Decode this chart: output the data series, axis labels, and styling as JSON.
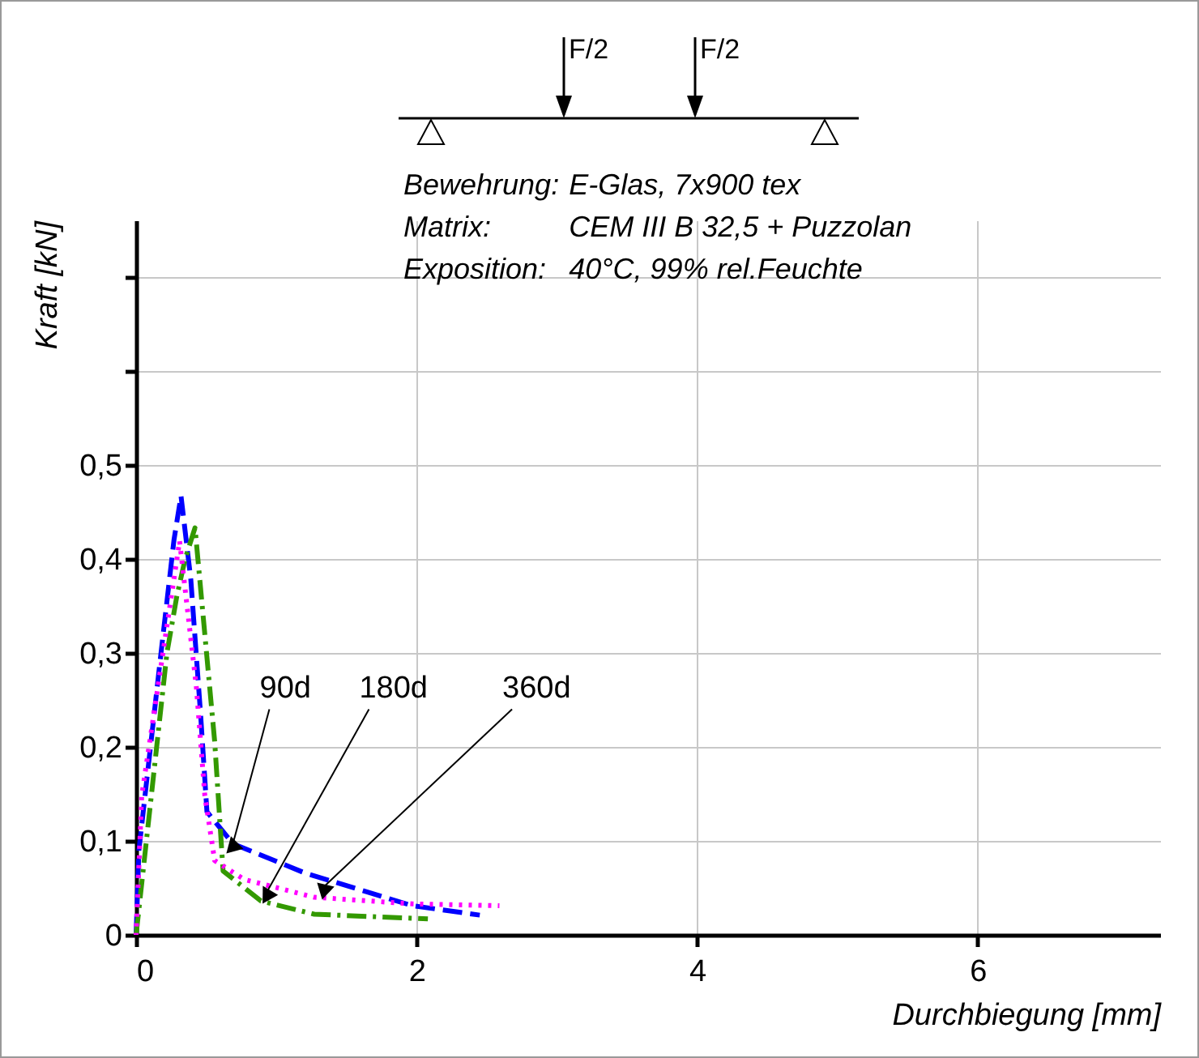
{
  "chart_data": {
    "type": "line",
    "xlabel": "Durchbiegung [mm]",
    "ylabel": "Kraft [kN]",
    "xlim": [
      0,
      7.3
    ],
    "ylim": [
      0,
      0.76
    ],
    "xticks": [
      0,
      2,
      4,
      6
    ],
    "yticks": [
      0,
      {
        "value": 0.1,
        "label": "0,1"
      },
      {
        "value": 0.2,
        "label": "0,2"
      },
      {
        "value": 0.3,
        "label": "0,3"
      },
      {
        "value": 0.4,
        "label": "0,4"
      },
      {
        "value": 0.5,
        "label": "0,5"
      },
      {
        "value": 0.6,
        "label": null
      },
      {
        "value": 0.7,
        "label": null
      }
    ],
    "grid": true,
    "series": [
      {
        "color": "#0000ff",
        "line_style": "dashed",
        "x": [
          0,
          0.02,
          0.17,
          0.27,
          0.32,
          0.39,
          0.46,
          0.505,
          0.69,
          1.2,
          1.97,
          2.45
        ],
        "values": [
          0,
          0.09,
          0.29,
          0.42,
          0.467,
          0.378,
          0.234,
          0.131,
          0.097,
          0.066,
          0.031,
          0.021
        ]
      },
      {
        "color": "#339900",
        "line_style": "dashdot",
        "x": [
          0,
          0.22,
          0.29,
          0.35,
          0.42,
          0.56,
          0.62,
          0.89,
          1.27,
          2.08
        ],
        "values": [
          0,
          0.3,
          0.36,
          0.4,
          0.433,
          0.206,
          0.068,
          0.036,
          0.022,
          0.017
        ]
      },
      {
        "color": "#ff00ff",
        "line_style": "dotted",
        "x": [
          0,
          0.04,
          0.31,
          0.43,
          0.49,
          0.56,
          0.77,
          1.27,
          1.97,
          2.59
        ],
        "values": [
          0,
          0.148,
          0.419,
          0.263,
          0.148,
          0.079,
          0.059,
          0.04,
          0.033,
          0.031
        ]
      }
    ],
    "annotations": [
      "F/2",
      "F/2",
      "Bewehrung:  E-Glas, 7x900 tex",
      "Matrix:  CEM III B 32,5 + Puzzolan",
      "Exposition:  40°C, 99% rel.Feuchte",
      {
        "text": "90d",
        "x": 0.69,
        "y": 0.097
      },
      {
        "text": "180d",
        "x": 0.93,
        "y": 0.045
      },
      {
        "text": "360d",
        "x": 1.33,
        "y": 0.05
      }
    ]
  }
}
